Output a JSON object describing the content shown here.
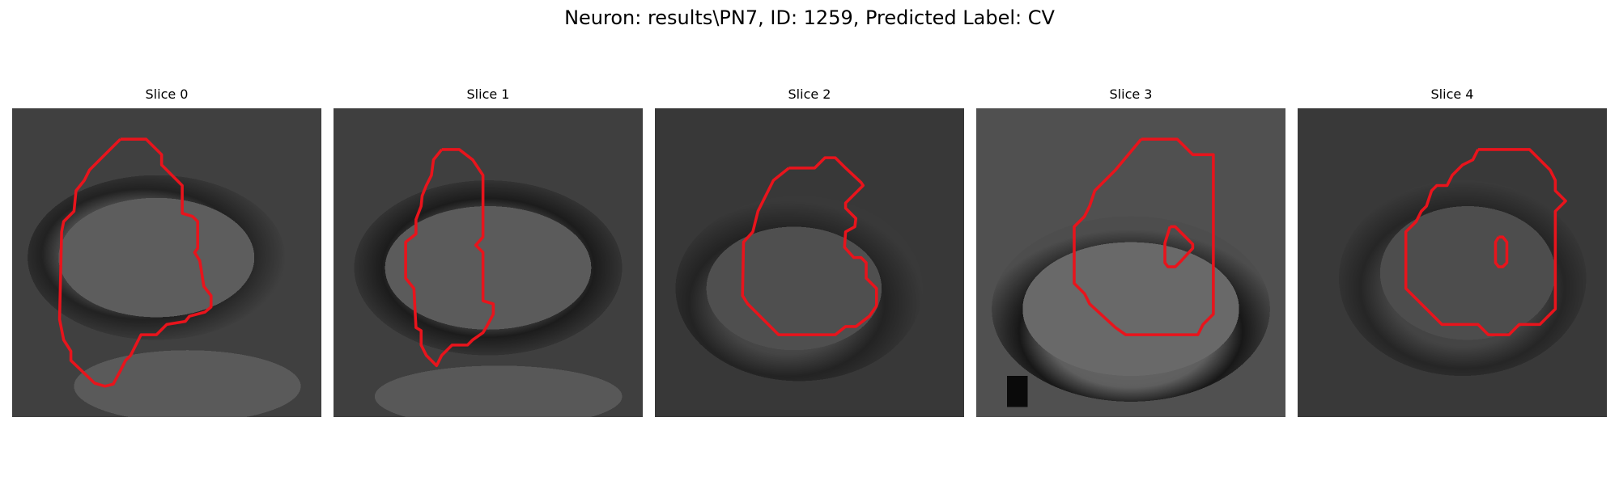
{
  "figure": {
    "title": "Neuron: results\\PN7, ID: 1259, Predicted Label: CV"
  },
  "panels": [
    {
      "title": "Slice 0"
    },
    {
      "title": "Slice 1"
    },
    {
      "title": "Slice 2"
    },
    {
      "title": "Slice 3"
    },
    {
      "title": "Slice 4"
    }
  ],
  "colors": {
    "outline": "#e8141c"
  },
  "image": {
    "content": "grayscale pixelated microscopy patch with a red segmentation contour"
  }
}
